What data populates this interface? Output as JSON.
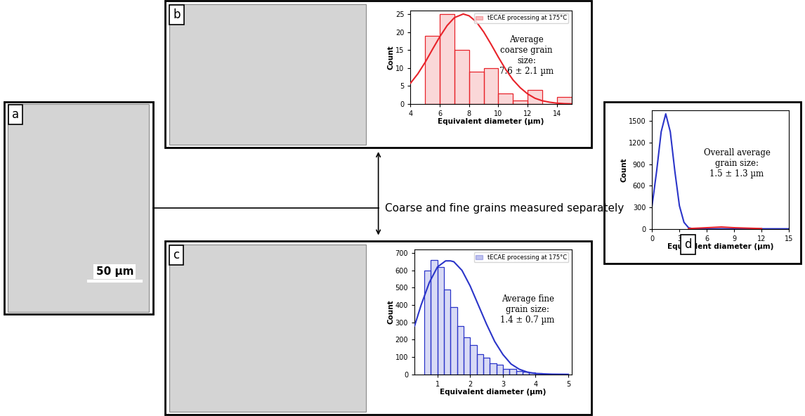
{
  "micrograph": {
    "panel": "a",
    "scale_bar": "50 µm"
  },
  "note": "Coarse and fine grains measured separately",
  "chart_data": [
    {
      "type": "histogram",
      "panel": "b",
      "name": "tECAE processing at 175°C",
      "color": "#e8232a",
      "bins": [
        5,
        6,
        7,
        8,
        9,
        10,
        11,
        12,
        13,
        14,
        15
      ],
      "counts": [
        19,
        25,
        15,
        9,
        10,
        3,
        1,
        4,
        0,
        2
      ],
      "fit": {
        "x": [
          4,
          4.5,
          5,
          5.5,
          6,
          6.5,
          7,
          7.6,
          8,
          8.5,
          9,
          9.5,
          10,
          10.5,
          11,
          11.5,
          12,
          12.5,
          13,
          13.5,
          14,
          14.5,
          15
        ],
        "values": [
          5.8,
          8.4,
          11.6,
          15.2,
          18.7,
          21.8,
          24,
          25,
          24.5,
          22.8,
          20,
          16.6,
          13,
          9.6,
          6.7,
          4.5,
          2.8,
          1.6,
          0.9,
          0.5,
          0.24,
          0.1,
          0.05
        ]
      },
      "annotation": "Average\ncoarse grain\nsize:\n7.6 ± 2.1 µm",
      "x_label": "Equivalent diameter (µm)",
      "y_label": "Count",
      "xlim": [
        4,
        15
      ],
      "ylim": [
        0,
        26
      ],
      "xticks": [
        4,
        6,
        8,
        10,
        12,
        14
      ],
      "yticks": [
        0,
        5,
        10,
        15,
        20,
        25
      ],
      "legend": "upper right"
    },
    {
      "type": "histogram",
      "panel": "c",
      "name": "tECAE processing at 175°C",
      "color": "#2b35c9",
      "bins": [
        0.6,
        0.8,
        1.0,
        1.2,
        1.4,
        1.6,
        1.8,
        2.0,
        2.2,
        2.4,
        2.6,
        2.8,
        3.0,
        3.2,
        3.4,
        3.6,
        3.8,
        4.0,
        4.2,
        4.4,
        4.6,
        4.8,
        5.0
      ],
      "counts": [
        600,
        660,
        620,
        490,
        390,
        280,
        215,
        170,
        115,
        95,
        65,
        55,
        30,
        30,
        20,
        15,
        10,
        8,
        5,
        5,
        3,
        2
      ],
      "fit": {
        "x": [
          0.3,
          0.5,
          0.75,
          1.0,
          1.25,
          1.4,
          1.5,
          1.75,
          2.0,
          2.25,
          2.5,
          2.75,
          3.0,
          3.25,
          3.5,
          3.75,
          4.0,
          4.5,
          5.0
        ],
        "values": [
          280,
          400,
          530,
          620,
          655,
          655,
          650,
          600,
          510,
          400,
          290,
          190,
          115,
          60,
          30,
          13,
          5,
          1,
          0
        ]
      },
      "annotation": "Average fine\ngrain size:\n1.4 ± 0.7 µm",
      "x_label": "Equivalent diameter (µm)",
      "y_label": "Count",
      "xlim": [
        0.3,
        5.1
      ],
      "ylim": [
        0,
        720
      ],
      "xticks": [
        1,
        2,
        3,
        4,
        5
      ],
      "yticks": [
        0,
        100,
        200,
        300,
        400,
        500,
        600,
        700
      ],
      "legend": "upper right"
    },
    {
      "type": "line",
      "panel": "d",
      "series": [
        {
          "color": "#2b35c9",
          "x": [
            0,
            0.5,
            1.0,
            1.5,
            2.0,
            2.5,
            3.0,
            3.5,
            4.0,
            4.5,
            6,
            9,
            12,
            15
          ],
          "values": [
            320,
            800,
            1350,
            1600,
            1350,
            800,
            320,
            90,
            15,
            0,
            0,
            0,
            0,
            0
          ]
        },
        {
          "color": "#e8232a",
          "x": [
            4,
            6,
            7.6,
            9,
            12
          ],
          "values": [
            3,
            15,
            25,
            15,
            3
          ]
        }
      ],
      "annotation": "Overall average\ngrain size:\n1.5 ± 1.3 µm",
      "x_label": "Equivalent diameter (µm)",
      "y_label": "Count",
      "xlim": [
        0,
        15
      ],
      "ylim": [
        0,
        1650
      ],
      "xticks": [
        0,
        3,
        6,
        9,
        12,
        15
      ],
      "yticks": [
        0,
        300,
        600,
        900,
        1200,
        1500
      ]
    }
  ]
}
